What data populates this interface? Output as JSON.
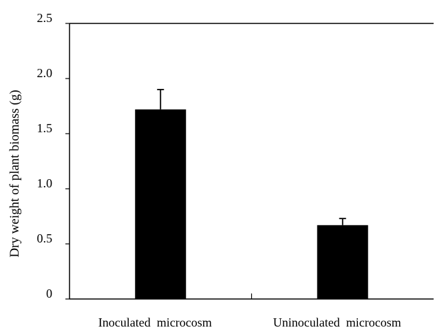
{
  "chart_data": {
    "type": "bar",
    "title": "",
    "xlabel": "",
    "ylabel": "Dry  weight of plant biomass (g)",
    "categories": [
      "Inoculated  microcosm",
      "Uninoculated  microcosm"
    ],
    "values": [
      1.72,
      0.67
    ],
    "error_upper": [
      1.9,
      0.73
    ],
    "ylim": [
      0,
      2.5
    ],
    "yticks": [
      0,
      0.5,
      1.0,
      1.5,
      2.0,
      2.5
    ],
    "ytick_labels": [
      "0",
      "0.5",
      "1.0",
      "1.5",
      "2.0",
      "2.5"
    ],
    "bar_color": "#000000",
    "grid": false,
    "legend": "none"
  }
}
